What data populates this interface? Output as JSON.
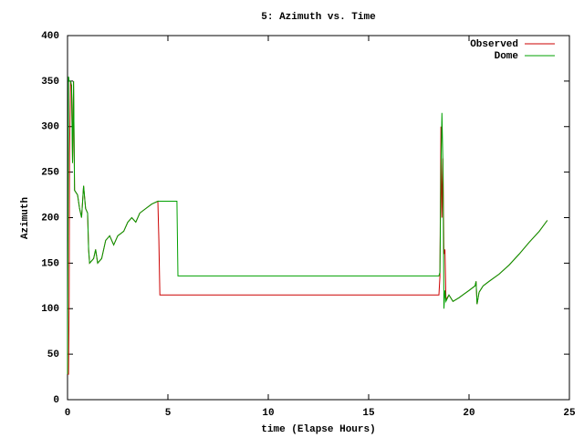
{
  "chart_data": {
    "type": "line",
    "title": "5: Azimuth vs. Time",
    "x_label": "time (Elapse Hours)",
    "y_label": "Azimuth",
    "x": [
      0,
      0.05,
      0.08,
      0.1,
      0.15,
      0.2,
      0.25,
      0.3,
      0.35,
      0.5,
      0.6,
      0.7,
      0.8,
      0.9,
      1.0,
      1.05,
      1.1,
      1.3,
      1.4,
      1.5,
      1.7,
      1.9,
      2.1,
      2.3,
      2.5,
      2.8,
      3.0,
      3.2,
      3.4,
      3.6,
      3.9,
      4.2,
      4.5,
      4.55,
      4.6,
      5.45,
      5.5,
      18.5,
      18.55,
      18.6,
      18.65,
      18.7,
      18.75,
      18.8,
      18.85,
      19.0,
      19.2,
      19.5,
      20.0,
      20.3,
      20.35,
      20.4,
      20.5,
      20.7,
      21.0,
      21.5,
      22.0,
      22.5,
      23.0,
      23.5,
      23.9
    ],
    "series": [
      {
        "name": "Observed",
        "color": "#cc0000",
        "values": [
          28,
          28,
          110,
          270,
          350,
          345,
          260,
          350,
          230,
          225,
          210,
          200,
          235,
          210,
          205,
          165,
          150,
          155,
          165,
          150,
          155,
          175,
          180,
          170,
          180,
          185,
          195,
          200,
          195,
          205,
          210,
          215,
          218,
          175,
          115,
          115,
          115,
          115,
          135,
          300,
          200,
          265,
          160,
          165,
          110,
          115,
          108,
          112,
          120,
          125,
          130,
          105,
          118,
          125,
          130,
          138,
          148,
          160,
          173,
          185,
          197
        ]
      },
      {
        "name": "Dome",
        "color": "#00a000",
        "values": [
          28,
          355,
          350,
          350,
          350,
          345,
          260,
          350,
          230,
          225,
          210,
          200,
          235,
          210,
          205,
          165,
          150,
          155,
          165,
          150,
          155,
          175,
          180,
          170,
          180,
          185,
          195,
          200,
          195,
          205,
          210,
          215,
          218,
          218,
          218,
          218,
          136,
          136,
          140,
          250,
          315,
          260,
          100,
          120,
          108,
          115,
          108,
          112,
          120,
          125,
          130,
          105,
          118,
          125,
          130,
          138,
          148,
          160,
          173,
          185,
          197
        ]
      }
    ],
    "xlim": [
      0,
      25
    ],
    "xticks": [
      0,
      5,
      10,
      15,
      20,
      25
    ],
    "ylim": [
      0,
      400
    ],
    "yticks": [
      0,
      50,
      100,
      150,
      200,
      250,
      300,
      350,
      400
    ],
    "legend": "top-right",
    "grid": false
  }
}
